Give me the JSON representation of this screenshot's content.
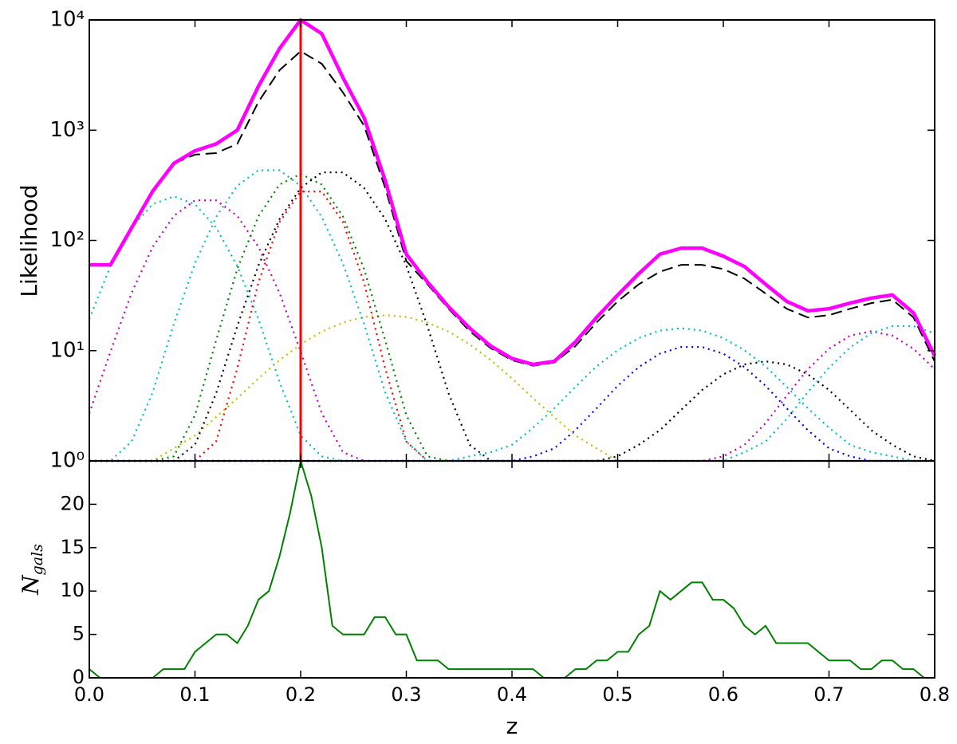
{
  "chart_data": [
    {
      "type": "line",
      "ylabel": "Likelihood",
      "log": true,
      "xlim": [
        0,
        0.8
      ],
      "ylim": [
        1,
        10000
      ],
      "yticks": [
        {
          "value": 1,
          "label": "10⁰"
        },
        {
          "value": 10,
          "label": "10¹"
        },
        {
          "value": 100,
          "label": "10²"
        },
        {
          "value": 1000,
          "label": "10³"
        },
        {
          "value": 10000,
          "label": "10⁴"
        }
      ],
      "x": [
        0,
        0.02,
        0.04,
        0.06,
        0.08,
        0.1,
        0.12,
        0.14,
        0.16,
        0.18,
        0.2,
        0.22,
        0.24,
        0.26,
        0.28,
        0.3,
        0.32,
        0.34,
        0.36,
        0.38,
        0.4,
        0.42,
        0.44,
        0.46,
        0.48,
        0.5,
        0.52,
        0.54,
        0.56,
        0.58,
        0.6,
        0.62,
        0.64,
        0.66,
        0.68,
        0.7,
        0.72,
        0.74,
        0.76,
        0.78,
        0.8
      ],
      "series": [
        {
          "color": "#00bfbf",
          "style": "dotted",
          "values": [
            19.4,
            58.5,
            131,
            213,
            251,
            213,
            131,
            58.5,
            19.4,
            5.2,
            1.7,
            1.1,
            1,
            1,
            1,
            1,
            1,
            1,
            1,
            1,
            1,
            1,
            1,
            1,
            1,
            1,
            1,
            1,
            1,
            1,
            1,
            1,
            1,
            1,
            1,
            1,
            1,
            1,
            1,
            1,
            1
          ]
        },
        {
          "color": "#bf00bf",
          "style": "dotted",
          "values": [
            2.7,
            9.8,
            33.4,
            87.4,
            167,
            231,
            231,
            167,
            87.4,
            33.4,
            9.8,
            2.7,
            1.2,
            1,
            1,
            1,
            1,
            1,
            1,
            1,
            1,
            1,
            1,
            1,
            1,
            1,
            1,
            1,
            1,
            1,
            1,
            1,
            1,
            1,
            1,
            1,
            1,
            1,
            1,
            1,
            1
          ]
        },
        {
          "color": "#bfbf00",
          "style": "dotted",
          "values": [
            1,
            1,
            1,
            1,
            1.3,
            1.7,
            2.5,
            3.7,
            5.6,
            8.2,
            11.4,
            14.9,
            18.0,
            20.2,
            21,
            20.2,
            18.0,
            14.9,
            11.4,
            8.2,
            5.6,
            3.7,
            2.5,
            1.7,
            1.3,
            1,
            1,
            1,
            1,
            1,
            1,
            1,
            1,
            1,
            1,
            1,
            1,
            1,
            1,
            1,
            1
          ]
        },
        {
          "color": "#00bfbf",
          "style": "dotted",
          "values": [
            1,
            1,
            1.5,
            4.2,
            17.5,
            61.8,
            163,
            313,
            433,
            433,
            313,
            163,
            61.8,
            17.5,
            4.2,
            1.5,
            1,
            1,
            1,
            1,
            1,
            1,
            1,
            1,
            1,
            1,
            1,
            1,
            1,
            1,
            1,
            1,
            1,
            1,
            1,
            1,
            1,
            1,
            1,
            1,
            1
          ]
        },
        {
          "color": "#008000",
          "style": "dotted",
          "values": [
            1,
            1,
            1,
            1,
            1.1,
            2.6,
            12.4,
            55,
            165,
            321,
            401,
            321,
            165,
            55,
            12.4,
            2.6,
            1.1,
            1,
            1,
            1,
            1,
            1,
            1,
            1,
            1,
            1,
            1,
            1,
            1,
            1,
            1,
            1,
            1,
            1,
            1,
            1,
            1,
            1,
            1,
            1,
            1
          ]
        },
        {
          "color": "#000000",
          "style": "dotted",
          "values": [
            1,
            1,
            1,
            1,
            1,
            1.4,
            4.1,
            16.7,
            59,
            156,
            299,
            414,
            414,
            299,
            156,
            59,
            16.7,
            4.1,
            1.4,
            1,
            1,
            1,
            1,
            1,
            1,
            1,
            1,
            1,
            1,
            1,
            1,
            1,
            1,
            1,
            1,
            1,
            1,
            1,
            1,
            1,
            1
          ]
        },
        {
          "color": "#ff0000",
          "style": "dotted",
          "values": [
            1,
            1,
            1,
            1,
            1,
            1,
            1.5,
            6.9,
            41.5,
            147,
            278,
            278,
            147,
            41.5,
            6.9,
            1.5,
            1,
            1,
            1,
            1,
            1,
            1,
            1,
            1,
            1,
            1,
            1,
            1,
            1,
            1,
            1,
            1,
            1,
            1,
            1,
            1,
            1,
            1,
            1,
            1,
            1
          ]
        },
        {
          "color": "#00bfbf",
          "style": "dotted",
          "values": [
            1,
            1,
            1,
            1,
            1,
            1,
            1,
            1,
            1,
            1,
            1,
            1,
            1,
            1,
            1,
            1,
            1,
            1,
            1.1,
            1.2,
            1.4,
            2.0,
            3.0,
            4.7,
            7.2,
            10.1,
            13.0,
            15.2,
            16,
            15.2,
            13.0,
            10.1,
            7.2,
            4.7,
            3.0,
            2.0,
            1.4,
            1.2,
            1.1,
            1,
            1
          ]
        },
        {
          "color": "#0000ff",
          "style": "dotted",
          "values": [
            1,
            1,
            1,
            1,
            1,
            1,
            1,
            1,
            1,
            1,
            1,
            1,
            1,
            1,
            1,
            1,
            1,
            1,
            1,
            1,
            1,
            1.1,
            1.3,
            1.9,
            3.0,
            4.8,
            7.1,
            9.4,
            10.8,
            10.8,
            9.4,
            7.1,
            4.8,
            3.0,
            1.9,
            1.3,
            1.1,
            1,
            1,
            1,
            1
          ]
        },
        {
          "color": "#000000",
          "style": "dotted",
          "values": [
            1,
            1,
            1,
            1,
            1,
            1,
            1,
            1,
            1,
            1,
            1,
            1,
            1,
            1,
            1,
            1,
            1,
            1,
            1,
            1,
            1,
            1,
            1,
            1,
            1,
            1.1,
            1.4,
            1.9,
            2.9,
            4.4,
            6.1,
            7.5,
            8,
            7.5,
            6.1,
            4.4,
            2.9,
            1.9,
            1.4,
            1.1,
            1
          ]
        },
        {
          "color": "#bf00bf",
          "style": "dotted",
          "values": [
            1,
            1,
            1,
            1,
            1,
            1,
            1,
            1,
            1,
            1,
            1,
            1,
            1,
            1,
            1,
            1,
            1,
            1,
            1,
            1,
            1,
            1,
            1,
            1,
            1,
            1,
            1,
            1,
            1,
            1,
            1.1,
            1.4,
            2.2,
            3.9,
            6.8,
            10.4,
            13.7,
            15,
            13.7,
            10.4,
            6.8
          ]
        },
        {
          "color": "#00bfbf",
          "style": "dotted",
          "values": [
            1,
            1,
            1,
            1,
            1,
            1,
            1,
            1,
            1,
            1,
            1,
            1,
            1,
            1,
            1,
            1,
            1,
            1,
            1,
            1,
            1,
            1,
            1,
            1,
            1,
            1,
            1,
            1,
            1,
            1,
            1,
            1.2,
            1.5,
            2.4,
            4.2,
            7.0,
            10.7,
            14.4,
            16.7,
            16.7,
            14.4
          ]
        },
        {
          "color": "#000000",
          "style": "dashed",
          "values": [
            null,
            null,
            null,
            null,
            500,
            600,
            620,
            750,
            1800,
            3500,
            5200,
            4000,
            2200,
            1100,
            300,
            65,
            40,
            24,
            15,
            10.5,
            8.2,
            7.3,
            7.8,
            11,
            18,
            28,
            40,
            52,
            60,
            60,
            55,
            45,
            33,
            24,
            20,
            21,
            24,
            27,
            29,
            20,
            8
          ]
        },
        {
          "color": "#ff00ff",
          "style": "thick",
          "values": [
            60,
            60,
            130,
            280,
            500,
            650,
            750,
            1000,
            2500,
            5500,
            10000,
            7500,
            3000,
            1300,
            350,
            75,
            42,
            25,
            16,
            11,
            8.5,
            7.5,
            8,
            12,
            20,
            32,
            50,
            75,
            85,
            85,
            72,
            58,
            40,
            28,
            23,
            24,
            27,
            30,
            32,
            22,
            9
          ]
        }
      ],
      "vline": {
        "x": 0.2,
        "color": "#ff0000"
      }
    },
    {
      "type": "line",
      "ylabel": {
        "base": "N",
        "sub": "gals"
      },
      "xlabel": "z",
      "color": "#008000",
      "xlim": [
        0,
        0.8
      ],
      "ylim": [
        0,
        25
      ],
      "yticks": [
        0,
        5,
        10,
        15,
        20
      ],
      "xticks": [
        {
          "value": 0,
          "label": "0.0"
        },
        0.1,
        0.2,
        0.3,
        0.4,
        0.5,
        0.6,
        0.7,
        0.8
      ],
      "x": [
        0,
        0.01,
        0.02,
        0.03,
        0.04,
        0.05,
        0.06,
        0.07,
        0.08,
        0.09,
        0.1,
        0.11,
        0.12,
        0.13,
        0.14,
        0.15,
        0.16,
        0.17,
        0.18,
        0.19,
        0.2,
        0.21,
        0.22,
        0.23,
        0.24,
        0.25,
        0.26,
        0.27,
        0.28,
        0.29,
        0.3,
        0.31,
        0.32,
        0.33,
        0.34,
        0.35,
        0.36,
        0.37,
        0.38,
        0.39,
        0.4,
        0.41,
        0.42,
        0.43,
        0.44,
        0.45,
        0.46,
        0.47,
        0.48,
        0.49,
        0.5,
        0.51,
        0.52,
        0.53,
        0.54,
        0.55,
        0.56,
        0.57,
        0.58,
        0.59,
        0.6,
        0.61,
        0.62,
        0.63,
        0.64,
        0.65,
        0.66,
        0.67,
        0.68,
        0.69,
        0.7,
        0.71,
        0.72,
        0.73,
        0.74,
        0.75,
        0.76,
        0.77,
        0.78,
        0.79,
        0.8
      ],
      "values": [
        1,
        0,
        0,
        0,
        0,
        0,
        0,
        1,
        1,
        1,
        3,
        4,
        5,
        5,
        4,
        6,
        9,
        10,
        14,
        19,
        25,
        21,
        15,
        6,
        5,
        5,
        5,
        7,
        7,
        5,
        5,
        2,
        2,
        2,
        1,
        1,
        1,
        1,
        1,
        1,
        1,
        1,
        1,
        0,
        0,
        0,
        1,
        1,
        2,
        2,
        3,
        3,
        5,
        6,
        10,
        9,
        10,
        11,
        11,
        9,
        9,
        8,
        6,
        5,
        6,
        4,
        4,
        4,
        4,
        3,
        2,
        2,
        2,
        1,
        1,
        2,
        2,
        1,
        1,
        0,
        0
      ]
    }
  ]
}
